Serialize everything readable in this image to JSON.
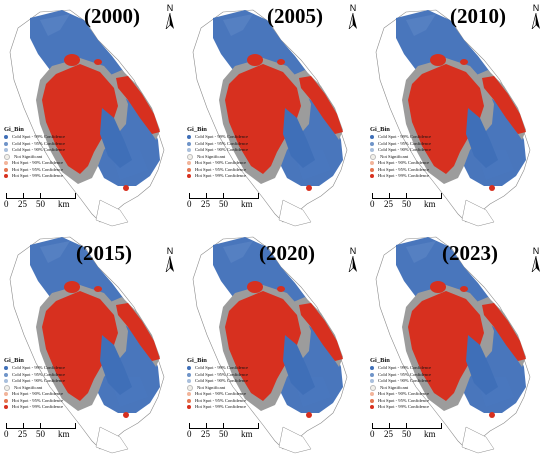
{
  "panels": [
    {
      "year": "(2000)"
    },
    {
      "year": "(2005)"
    },
    {
      "year": "(2010)"
    },
    {
      "year": "(2015)"
    },
    {
      "year": "(2020)"
    },
    {
      "year": "(2023)"
    }
  ],
  "north_label": "N",
  "legend": {
    "title": "Gi_Bin",
    "items": [
      {
        "label": "Cold Spot - 99% Confidence",
        "color": "#3f6fb8"
      },
      {
        "label": "Cold Spot - 95% Confidence",
        "color": "#6f94c8"
      },
      {
        "label": "Cold Spot - 90% Confidence",
        "color": "#a9bfdc"
      },
      {
        "label": "Not Significant",
        "color": "#f2f0ea"
      },
      {
        "label": "Hot Spot - 90% Confidence",
        "color": "#f2b49a"
      },
      {
        "label": "Hot Spot - 95% Confidence",
        "color": "#e4744f"
      },
      {
        "label": "Hot Spot - 99% Confidence",
        "color": "#d7301f"
      }
    ]
  },
  "scale": {
    "labels": [
      "0",
      "25",
      "50",
      "km"
    ]
  },
  "colors": {
    "cold": "#3f6fb8",
    "hot": "#d7301f",
    "not_significant_band": "#9c9c9c",
    "outline": "#8c8c8c"
  }
}
